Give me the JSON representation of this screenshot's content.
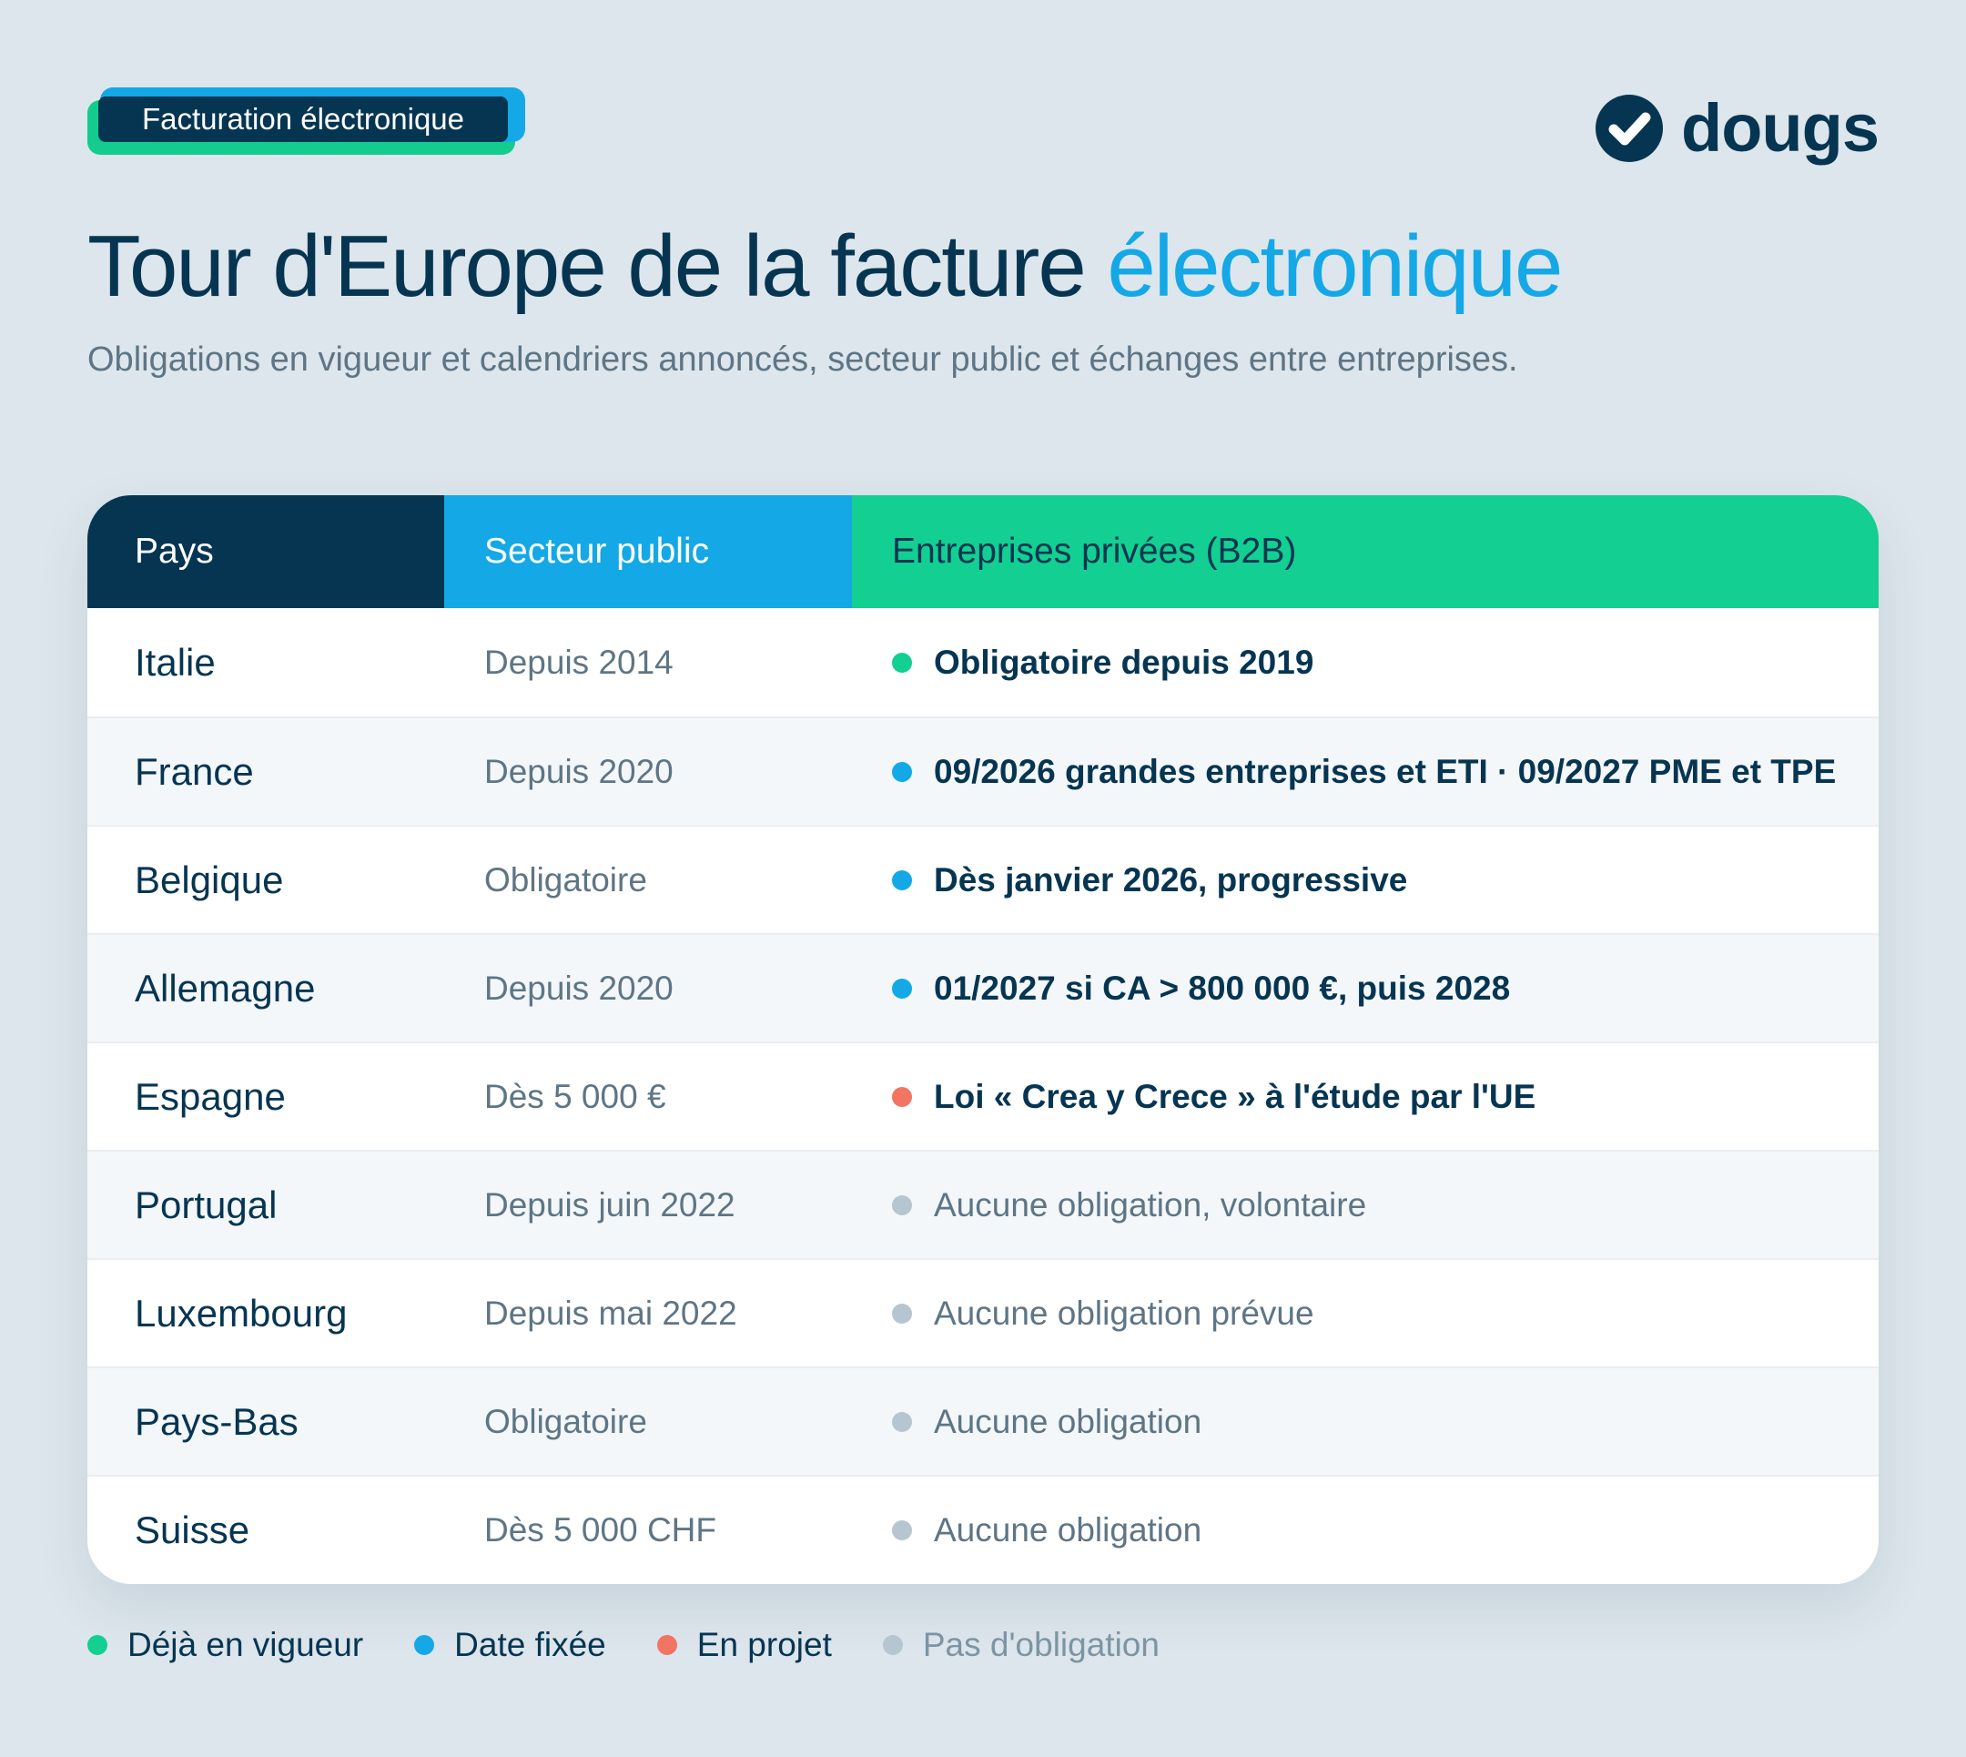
{
  "badge": "Facturation électronique",
  "logo": {
    "name": "dougs",
    "icon": "check-circle-icon"
  },
  "title": {
    "main": "Tour d'Europe de la facture",
    "accent": "électronique"
  },
  "subtitle": "Obligations en vigueur et calendriers annoncés, secteur public et échanges entre entreprises.",
  "colors": {
    "navy": "#063552",
    "blue": "#14a8e6",
    "green": "#13cf91",
    "red": "#f27462",
    "grey": "#b6c6d0"
  },
  "table": {
    "headers": {
      "country": "Pays",
      "public": "Secteur public",
      "b2b": "Entreprises privées (B2B)"
    },
    "rows": [
      {
        "country": "Italie",
        "public": "Depuis 2014",
        "b2b": "Obligatoire depuis 2019",
        "status": "green"
      },
      {
        "country": "France",
        "public": "Depuis 2020",
        "b2b": "09/2026 grandes entreprises et ETI · 09/2027 PME et TPE",
        "status": "blue"
      },
      {
        "country": "Belgique",
        "public": "Obligatoire",
        "b2b": "Dès janvier 2026, progressive",
        "status": "blue"
      },
      {
        "country": "Allemagne",
        "public": "Depuis 2020",
        "b2b": "01/2027 si CA > 800 000 €, puis 2028",
        "status": "blue"
      },
      {
        "country": "Espagne",
        "public": "Dès 5 000 €",
        "b2b": "Loi « Crea y Crece » à l'étude par l'UE",
        "status": "red"
      },
      {
        "country": "Portugal",
        "public": "Depuis juin 2022",
        "b2b": "Aucune obligation, volontaire",
        "status": "grey"
      },
      {
        "country": "Luxembourg",
        "public": "Depuis mai 2022",
        "b2b": "Aucune obligation prévue",
        "status": "grey"
      },
      {
        "country": "Pays-Bas",
        "public": "Obligatoire",
        "b2b": "Aucune obligation",
        "status": "grey"
      },
      {
        "country": "Suisse",
        "public": "Dès 5 000 CHF",
        "b2b": "Aucune obligation",
        "status": "grey"
      }
    ]
  },
  "legend": [
    {
      "label": "Déjà en vigueur",
      "status": "green"
    },
    {
      "label": "Date fixée",
      "status": "blue"
    },
    {
      "label": "En projet",
      "status": "red"
    },
    {
      "label": "Pas d'obligation",
      "status": "grey"
    }
  ]
}
